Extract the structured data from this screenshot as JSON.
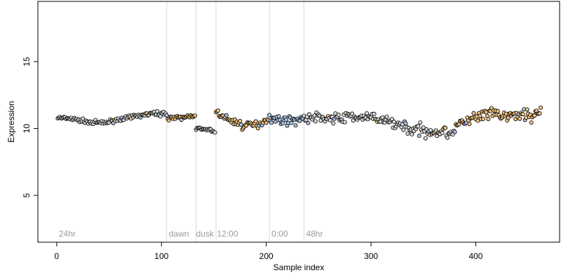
{
  "chart_data": {
    "type": "scatter",
    "title": "",
    "xlabel": "Sample index",
    "ylabel": "Expression",
    "xlim": [
      -18,
      480
    ],
    "ylim": [
      1.5,
      19.5
    ],
    "x_ticks": [
      0,
      100,
      200,
      300,
      400
    ],
    "y_ticks": [
      5,
      10,
      15
    ],
    "grid": false,
    "legend": "none",
    "colors": {
      "frame": "#000000",
      "vline": "#d9d9d9",
      "annotation": "#9a9a9a",
      "default_fill": "#dadada",
      "orange_fill": "#f3c27e",
      "blue_fill": "#a9c4ea"
    },
    "vlines": [
      105,
      133,
      152,
      203,
      236
    ],
    "annotations": [
      {
        "x": 2,
        "label": "24hr"
      },
      {
        "x": 107,
        "label": "dawn"
      },
      {
        "x": 133,
        "label": "dusk"
      },
      {
        "x": 153,
        "label": "12:00"
      },
      {
        "x": 205,
        "label": "0:00"
      },
      {
        "x": 238,
        "label": "48hr"
      }
    ],
    "segments": [
      {
        "start": 1,
        "end": 105,
        "fill": "default",
        "knots": [
          [
            1,
            10.8
          ],
          [
            15,
            10.7
          ],
          [
            30,
            10.5
          ],
          [
            45,
            10.4
          ],
          [
            60,
            10.7
          ],
          [
            75,
            10.9
          ],
          [
            90,
            11.1
          ],
          [
            105,
            11.1
          ]
        ],
        "noise": 0.12
      },
      {
        "start": 106,
        "end": 132,
        "fill": "orange",
        "knots": [
          [
            106,
            10.8
          ],
          [
            120,
            10.8
          ],
          [
            132,
            11.0
          ]
        ],
        "noise": 0.12
      },
      {
        "start": 133,
        "end": 151,
        "fill": "default",
        "knots": [
          [
            133,
            10.0
          ],
          [
            142,
            9.9
          ],
          [
            151,
            9.8
          ]
        ],
        "noise": 0.1
      },
      {
        "start": 152,
        "end": 202,
        "fill": "orange",
        "knots": [
          [
            152,
            11.2
          ],
          [
            165,
            10.6
          ],
          [
            180,
            10.2
          ],
          [
            192,
            10.3
          ],
          [
            202,
            10.8
          ]
        ],
        "noise": 0.25
      },
      {
        "start": 203,
        "end": 235,
        "fill": "blue",
        "knots": [
          [
            203,
            10.8
          ],
          [
            215,
            10.6
          ],
          [
            228,
            10.6
          ],
          [
            235,
            10.8
          ]
        ],
        "noise": 0.25
      },
      {
        "start": 236,
        "end": 300,
        "fill": "default",
        "knots": [
          [
            236,
            10.7
          ],
          [
            250,
            10.9
          ],
          [
            265,
            10.7
          ],
          [
            280,
            10.9
          ],
          [
            300,
            10.8
          ]
        ],
        "noise": 0.3
      },
      {
        "start": 301,
        "end": 340,
        "fill": "default",
        "knots": [
          [
            301,
            10.7
          ],
          [
            320,
            10.5
          ],
          [
            340,
            9.9
          ]
        ],
        "noise": 0.35
      },
      {
        "start": 341,
        "end": 380,
        "fill": "default",
        "knots": [
          [
            341,
            9.9
          ],
          [
            360,
            9.8
          ],
          [
            375,
            9.7
          ],
          [
            380,
            10.0
          ]
        ],
        "noise": 0.4
      },
      {
        "start": 381,
        "end": 462,
        "fill": "orange",
        "knots": [
          [
            381,
            10.2
          ],
          [
            400,
            10.8
          ],
          [
            415,
            11.1
          ],
          [
            430,
            10.9
          ],
          [
            445,
            11.0
          ],
          [
            462,
            11.1
          ]
        ],
        "noise": 0.4
      }
    ]
  }
}
